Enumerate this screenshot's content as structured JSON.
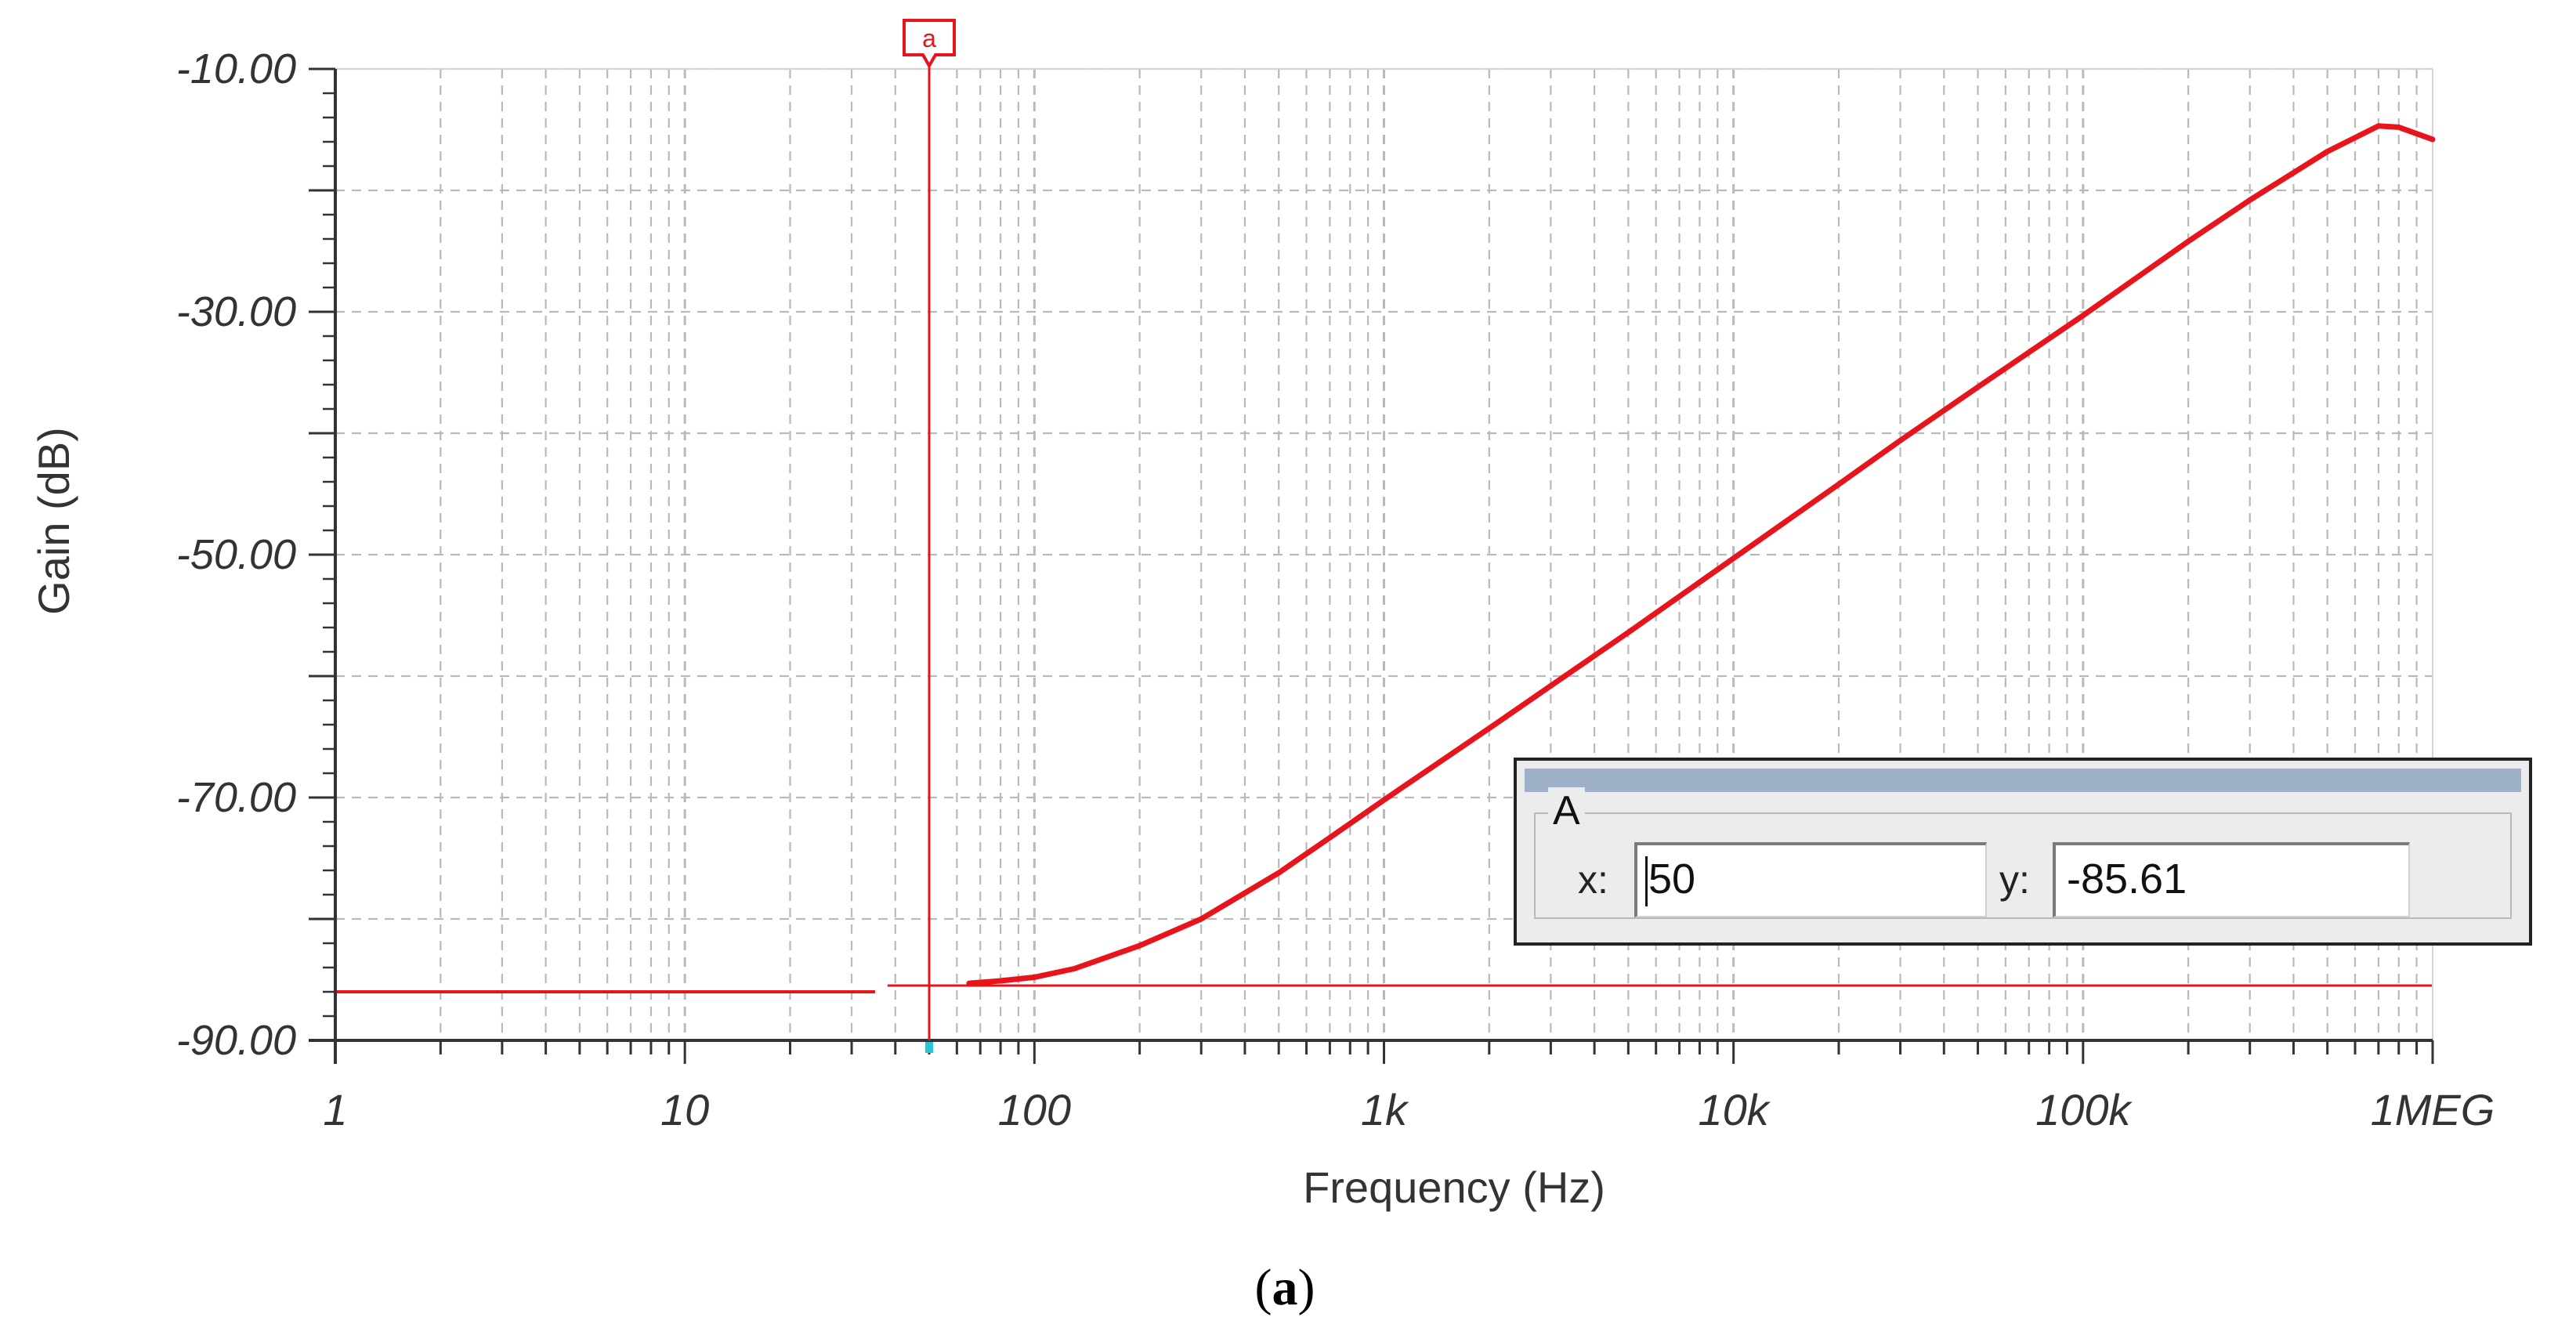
{
  "chart_data": {
    "type": "line",
    "xlabel": "Frequency (Hz)",
    "ylabel": "Gain (dB)",
    "x_scale": "log",
    "xlim": [
      1,
      1000000
    ],
    "ylim": [
      -90,
      -10
    ],
    "x_ticks": [
      {
        "value": 1,
        "label": "1"
      },
      {
        "value": 10,
        "label": "10"
      },
      {
        "value": 100,
        "label": "100"
      },
      {
        "value": 1000,
        "label": "1k"
      },
      {
        "value": 10000,
        "label": "10k"
      },
      {
        "value": 100000,
        "label": "100k"
      },
      {
        "value": 1000000,
        "label": "1MEG"
      }
    ],
    "y_ticks": [
      {
        "value": -10,
        "label": "-10.00"
      },
      {
        "value": -30,
        "label": "-30.00"
      },
      {
        "value": -50,
        "label": "-50.00"
      },
      {
        "value": -70,
        "label": "-70.00"
      },
      {
        "value": -90,
        "label": "-90.00"
      }
    ],
    "grid": true,
    "series": [
      {
        "color": "#e8141b",
        "x": [
          65,
          80,
          100,
          130,
          200,
          300,
          500,
          700,
          1000,
          2000,
          3000,
          5000,
          10000,
          20000,
          30000,
          50000,
          100000,
          200000,
          300000,
          500000,
          700000,
          800000,
          1000000
        ],
        "y": [
          -85.3,
          -85.1,
          -84.8,
          -84.1,
          -82.2,
          -80.0,
          -76.2,
          -73.3,
          -70.2,
          -64.3,
          -60.8,
          -56.4,
          -50.3,
          -44.2,
          -40.6,
          -36.2,
          -30.3,
          -24.2,
          -20.8,
          -16.8,
          -14.7,
          -14.8,
          -15.8
        ]
      }
    ],
    "cursor": {
      "label": "a",
      "x": 50,
      "y": -85.61
    },
    "baseline_value": -85.61,
    "colors": {
      "curve": "#e8141b",
      "grid": "#b9b9b9",
      "axis": "#333333",
      "cursor": "#e8141b"
    }
  },
  "cursor_readout": {
    "group_label": "A",
    "x_label": "x:",
    "x_value": "50",
    "y_label": "y:",
    "y_value": "-85.61"
  },
  "caption": {
    "text_open": "(",
    "text_letter": "a",
    "text_close": ")"
  }
}
